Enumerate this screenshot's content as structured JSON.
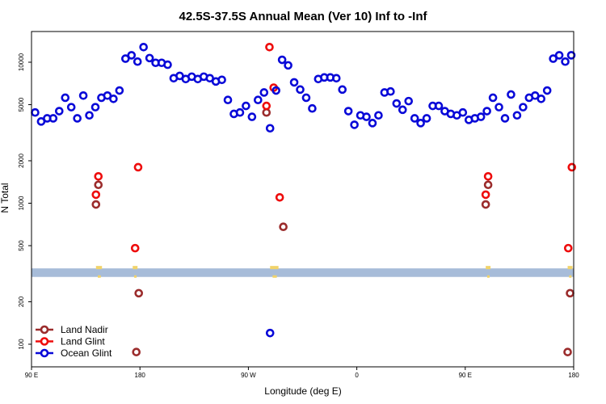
{
  "chart_data": {
    "type": "scatter",
    "title": "42.5S-37.5S Annual Mean (Ver 10)   Inf to -Inf",
    "xlabel": "Longitude (deg E)",
    "ylabel": "N Total",
    "x_ticks": [
      {
        "value": 90,
        "label": "90 E"
      },
      {
        "value": 180,
        "label": "180"
      },
      {
        "value": 270,
        "label": "90 W"
      },
      {
        "value": 360,
        "label": "0"
      },
      {
        "value": 450,
        "label": "90 E"
      },
      {
        "value": 540,
        "label": "180"
      }
    ],
    "y_ticks": [
      {
        "value": 100,
        "label": "100"
      },
      {
        "value": 200,
        "label": "200"
      },
      {
        "value": 500,
        "label": "500"
      },
      {
        "value": 1000,
        "label": "1000"
      },
      {
        "value": 2000,
        "label": "2000"
      },
      {
        "value": 5000,
        "label": "5000"
      },
      {
        "value": 10000,
        "label": "10000"
      }
    ],
    "xlim": [
      90,
      540
    ],
    "ylim_log": [
      75,
      18000
    ],
    "land_band": {
      "y_range": [
        300,
        345
      ],
      "color": "#a7bcd9",
      "land_color": "#f1d36a",
      "land_x": [
        [
          143.5,
          148.5
        ],
        [
          174,
          178
        ],
        [
          288,
          295
        ],
        [
          467,
          471
        ],
        [
          535,
          539
        ]
      ]
    },
    "legend_position": "bottom-left",
    "series": [
      {
        "name": "Land Nadir",
        "color": "#9b2c2c",
        "x": [
          143.5,
          145.5,
          179,
          177,
          285,
          299,
          467,
          469,
          537,
          535
        ],
        "y": [
          980,
          1350,
          230,
          88,
          4400,
          680,
          980,
          1350,
          230,
          88
        ]
      },
      {
        "name": "Land Glint",
        "color": "#ee0d0d",
        "x": [
          143.5,
          145.5,
          178.5,
          176,
          285,
          287.5,
          291,
          296,
          467,
          469,
          538.5,
          535.5
        ],
        "y": [
          1150,
          1550,
          1800,
          480,
          4900,
          12800,
          6600,
          1100,
          1150,
          1550,
          1800,
          480
        ]
      },
      {
        "name": "Ocean Glint",
        "color": "#0909d8",
        "x": [
          93,
          98,
          103,
          108,
          113,
          118,
          123,
          128,
          133,
          138,
          143,
          148,
          153,
          158,
          163,
          168,
          173,
          178,
          183,
          188,
          193,
          198,
          203,
          208,
          213,
          218,
          223,
          228,
          233,
          238,
          243,
          248,
          253,
          258,
          263,
          268,
          273,
          278,
          283,
          288,
          293,
          298,
          303,
          308,
          313,
          318,
          323,
          328,
          333,
          338,
          343,
          348,
          353,
          358,
          363,
          368,
          373,
          378,
          383,
          388,
          393,
          398,
          403,
          408,
          413,
          418,
          423,
          428,
          433,
          438,
          443,
          448,
          453,
          458,
          463,
          468,
          473,
          478,
          483,
          488,
          493,
          498,
          503,
          508,
          513,
          518,
          523,
          528,
          533,
          538,
          288
        ],
        "y": [
          4400,
          3800,
          4000,
          4000,
          4500,
          5600,
          4800,
          4000,
          5800,
          4200,
          4800,
          5600,
          5800,
          5500,
          6300,
          10600,
          11200,
          10100,
          12800,
          10700,
          9900,
          9900,
          9600,
          7700,
          8000,
          7600,
          7900,
          7600,
          7900,
          7700,
          7300,
          7500,
          5400,
          4300,
          4400,
          4900,
          4100,
          5400,
          6100,
          3400,
          6300,
          10400,
          9500,
          7200,
          6400,
          5600,
          4700,
          7600,
          7800,
          7800,
          7700,
          6400,
          4500,
          3600,
          4200,
          4100,
          3700,
          4200,
          6100,
          6200,
          5100,
          4600,
          5300,
          4000,
          3700,
          4000,
          4900,
          4900,
          4500,
          4300,
          4200,
          4400,
          3900,
          4000,
          4100,
          4500,
          5600,
          4800,
          4000,
          5900,
          4200,
          4800,
          5600,
          5800,
          5500,
          6300,
          10600,
          11200,
          10100,
          11200,
          120
        ]
      }
    ]
  }
}
